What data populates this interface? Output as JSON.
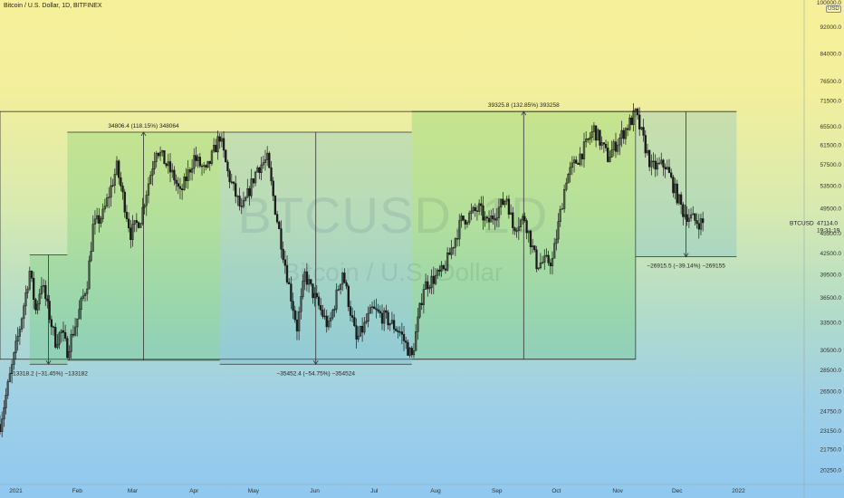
{
  "header": {
    "title": "Bitcoin / U.S. Dollar, 1D, BITFINEX"
  },
  "watermark": {
    "symbol": "BTCUSD, 1D",
    "name": "Bitcoin / U.S. Dollar"
  },
  "currency_badge": "USD",
  "colors": {
    "candle": "#1a1a1a",
    "green_box": "#3fbf4f",
    "blue_box": "#4aa8d8",
    "range_line": "#333333"
  },
  "chart_data": {
    "type": "candlestick",
    "symbol": "BTCUSD",
    "interval": "1D",
    "exchange": "BITFINEX",
    "yscale": "log",
    "ylim": [
      19300,
      101000
    ],
    "xlim": [
      "2020-12-24",
      "2022-01-25"
    ],
    "y_ticks": [
      "100000.0",
      "92000.0",
      "84000.0",
      "76500.0",
      "71500.0",
      "65500.0",
      "61500.0",
      "57500.0",
      "53500.0",
      "49500.0",
      "45500.0",
      "42500.0",
      "39500.0",
      "36500.0",
      "33500.0",
      "30500.0",
      "28500.0",
      "26500.0",
      "24750.0",
      "23150.0",
      "21750.0",
      "20250.0"
    ],
    "x_ticks": [
      {
        "date": "2021-01-01",
        "label": "2021"
      },
      {
        "date": "2021-02-01",
        "label": "Feb"
      },
      {
        "date": "2021-03-01",
        "label": "Mar"
      },
      {
        "date": "2021-04-01",
        "label": "Apr"
      },
      {
        "date": "2021-05-01",
        "label": "May"
      },
      {
        "date": "2021-06-01",
        "label": "Jun"
      },
      {
        "date": "2021-07-01",
        "label": "Jul"
      },
      {
        "date": "2021-08-01",
        "label": "Aug"
      },
      {
        "date": "2021-09-01",
        "label": "Sep"
      },
      {
        "date": "2021-10-01",
        "label": "Oct"
      },
      {
        "date": "2021-11-01",
        "label": "Nov"
      },
      {
        "date": "2021-12-01",
        "label": "Dec"
      },
      {
        "date": "2022-01-01",
        "label": "2022"
      }
    ],
    "price_label": {
      "value": "47114.0",
      "sublabel": "19:31:19",
      "symbol": "BTCUSD"
    },
    "price_path": [
      [
        "2020-12-24",
        23700
      ],
      [
        "2020-12-30",
        28800
      ],
      [
        "2021-01-03",
        33000
      ],
      [
        "2021-01-08",
        40000
      ],
      [
        "2021-01-11",
        35000
      ],
      [
        "2021-01-14",
        38500
      ],
      [
        "2021-01-21",
        31500
      ],
      [
        "2021-01-24",
        32500
      ],
      [
        "2021-01-27",
        30500
      ],
      [
        "2021-02-01",
        34000
      ],
      [
        "2021-02-06",
        38500
      ],
      [
        "2021-02-09",
        46500
      ],
      [
        "2021-02-14",
        48500
      ],
      [
        "2021-02-21",
        57000
      ],
      [
        "2021-02-28",
        45500
      ],
      [
        "2021-03-05",
        48000
      ],
      [
        "2021-03-13",
        61000
      ],
      [
        "2021-03-22",
        55000
      ],
      [
        "2021-03-25",
        52000
      ],
      [
        "2021-04-01",
        59000
      ],
      [
        "2021-04-07",
        56000
      ],
      [
        "2021-04-14",
        63500
      ],
      [
        "2021-04-18",
        56000
      ],
      [
        "2021-04-25",
        49000
      ],
      [
        "2021-05-03",
        57000
      ],
      [
        "2021-05-08",
        58500
      ],
      [
        "2021-05-12",
        49500
      ],
      [
        "2021-05-19",
        38000
      ],
      [
        "2021-05-23",
        33000
      ],
      [
        "2021-05-27",
        39500
      ],
      [
        "2021-06-01",
        36500
      ],
      [
        "2021-06-08",
        33000
      ],
      [
        "2021-06-15",
        40000
      ],
      [
        "2021-06-22",
        31500
      ],
      [
        "2021-06-30",
        35000
      ],
      [
        "2021-07-07",
        34000
      ],
      [
        "2021-07-14",
        32500
      ],
      [
        "2021-07-20",
        29800
      ],
      [
        "2021-07-26",
        38000
      ],
      [
        "2021-08-05",
        40000
      ],
      [
        "2021-08-14",
        47500
      ],
      [
        "2021-08-23",
        49500
      ],
      [
        "2021-08-27",
        47000
      ],
      [
        "2021-09-06",
        51500
      ],
      [
        "2021-09-09",
        46500
      ],
      [
        "2021-09-15",
        48000
      ],
      [
        "2021-09-21",
        41000
      ],
      [
        "2021-09-29",
        41500
      ],
      [
        "2021-10-06",
        55000
      ],
      [
        "2021-10-16",
        61500
      ],
      [
        "2021-10-20",
        65000
      ],
      [
        "2021-10-27",
        59000
      ],
      [
        "2021-11-02",
        63000
      ],
      [
        "2021-11-10",
        68500
      ],
      [
        "2021-11-18",
        57000
      ],
      [
        "2021-11-25",
        57500
      ],
      [
        "2021-12-04",
        49000
      ],
      [
        "2021-12-10",
        47500
      ],
      [
        "2021-12-14",
        47114
      ]
    ],
    "annotations": [
      {
        "kind": "date-range",
        "start": "2020-12-24",
        "end": "2021-11-10",
        "low": 29600,
        "high": 69000,
        "label": "",
        "box": "none"
      },
      {
        "kind": "price-range",
        "start": "2021-01-08",
        "end": "2021-01-27",
        "from": 42300,
        "to": 29100,
        "label": "−13318.2 (−31.45%) −133182",
        "box": "green",
        "label_pos": "bottom"
      },
      {
        "kind": "price-range",
        "start": "2021-01-27",
        "end": "2021-04-14",
        "from": 29500,
        "to": 64300,
        "label": "34806.4 (118.15%) 348064",
        "box": "green",
        "label_pos": "top"
      },
      {
        "kind": "price-range",
        "start": "2021-04-14",
        "end": "2021-07-20",
        "from": 64300,
        "to": 29100,
        "label": "−35452.4 (−54.75%) −354524",
        "box": "blue",
        "label_pos": "bottom"
      },
      {
        "kind": "price-range",
        "start": "2021-07-20",
        "end": "2021-11-10",
        "from": 29600,
        "to": 69000,
        "label": "39325.8 (132.85%) 393258",
        "box": "green",
        "label_pos": "top"
      },
      {
        "kind": "price-range",
        "start": "2021-11-10",
        "end": "2021-12-31",
        "from": 69000,
        "to": 42000,
        "label": "−26915.5 (−39.14%) −269155",
        "box": "blue",
        "label_pos": "bottom"
      }
    ]
  }
}
